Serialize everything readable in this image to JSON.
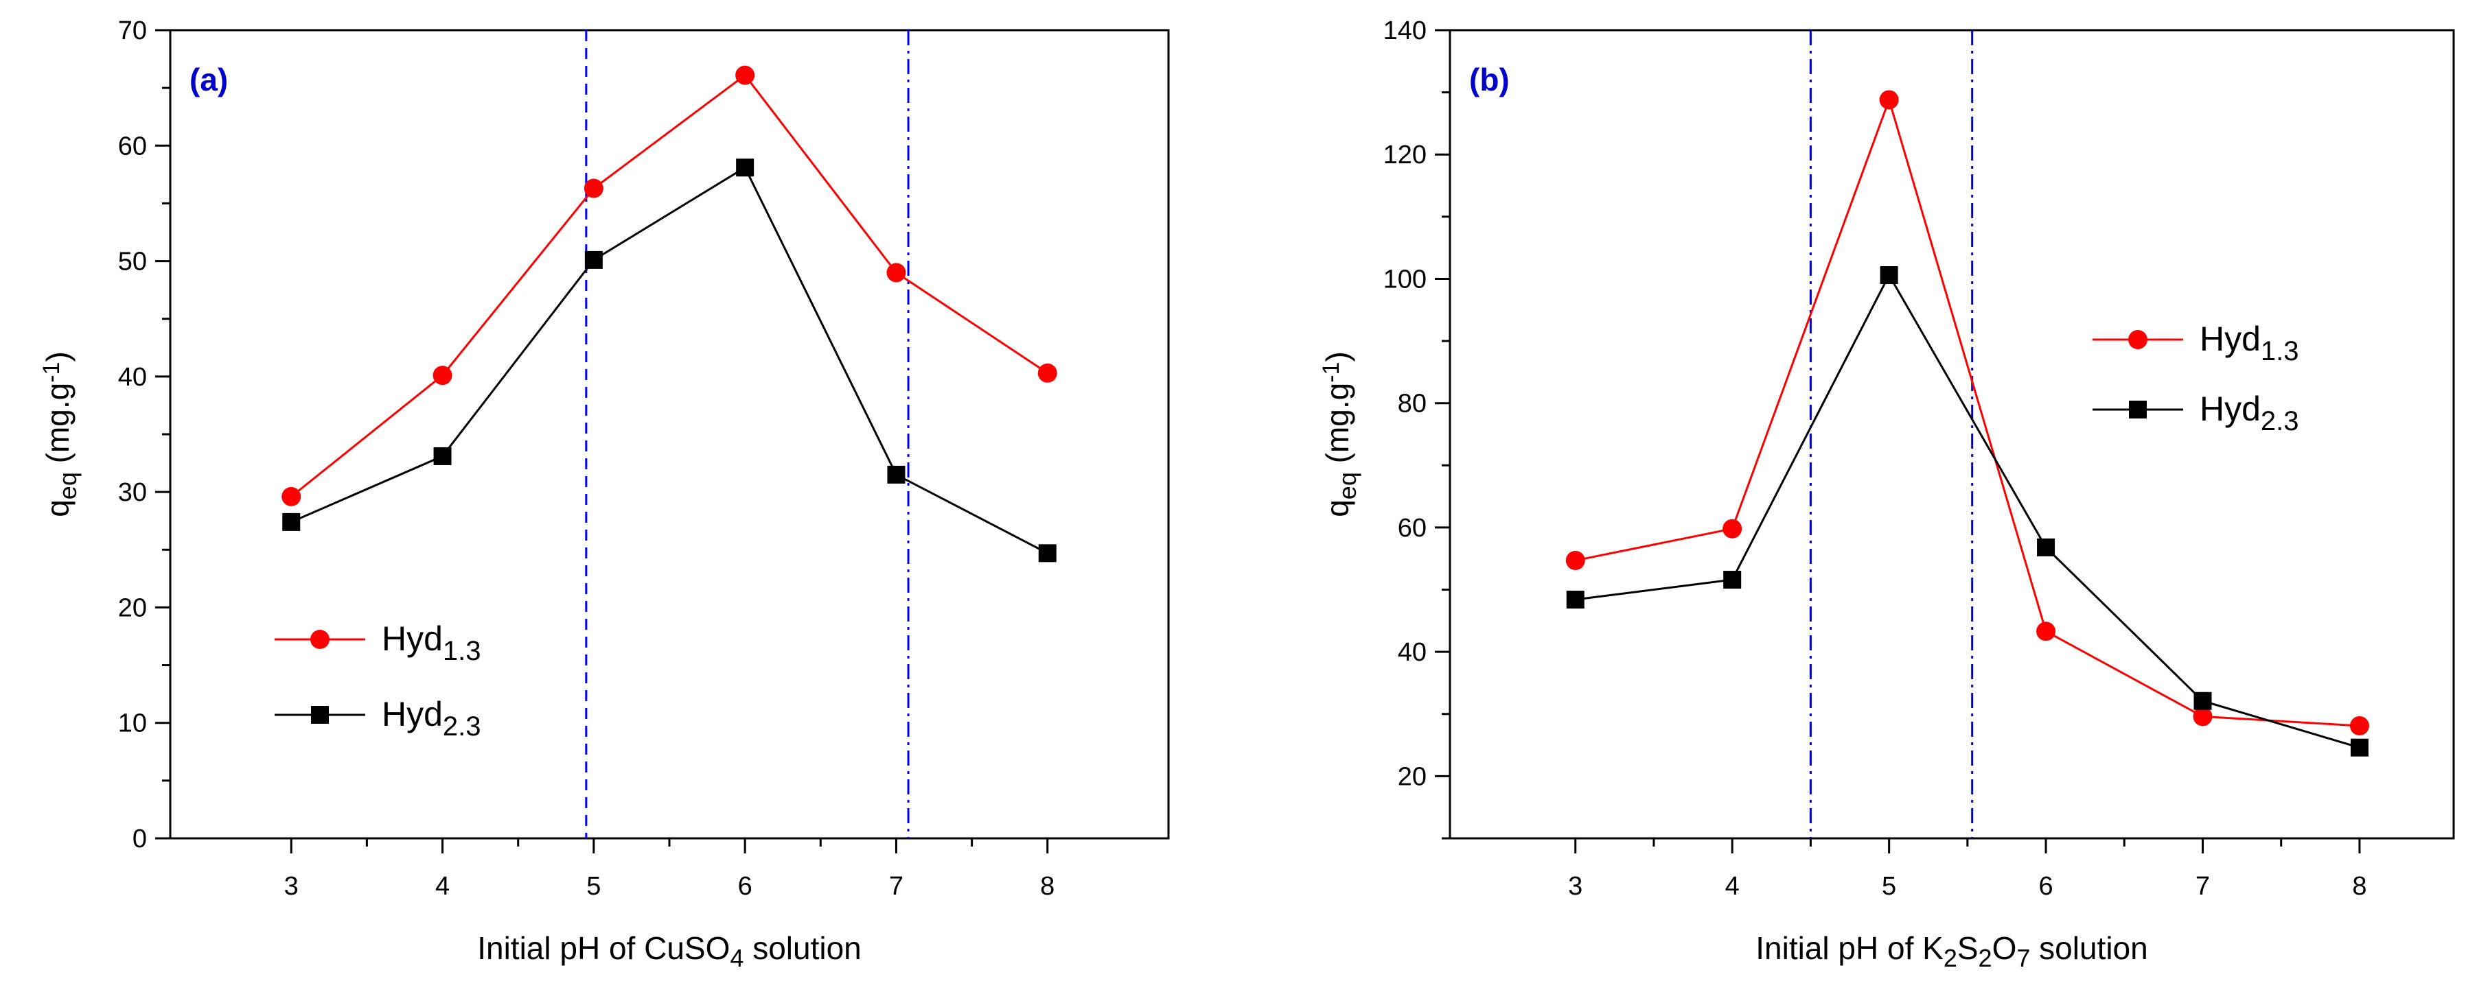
{
  "chart_data": [
    {
      "type": "line",
      "panel_label": "(a)",
      "x": [
        3,
        4,
        5,
        6,
        7,
        8
      ],
      "xlim": [
        2.2,
        8.8
      ],
      "ylim": [
        0,
        70
      ],
      "xticks": [
        "3",
        "4",
        "5",
        "6",
        "7",
        "8"
      ],
      "yticks": [
        "0",
        "10",
        "20",
        "30",
        "40",
        "50",
        "60",
        "70"
      ],
      "xlabel": {
        "main": "Initial pH of CuSO",
        "sub": "4",
        "suffix": " solution"
      },
      "ylabel": {
        "main": "q",
        "sub": "eq",
        "unit": " (mg.g",
        "sup": "-1",
        "close": ")"
      },
      "vlines": [
        {
          "x": 4.95,
          "style": "dash",
          "color": "#0000ff"
        },
        {
          "x": 7.08,
          "style": "dashdot",
          "color": "#0000ff"
        }
      ],
      "legend_position": "bottom-left",
      "series": [
        {
          "name_main": "Hyd",
          "name_sub": "1.3",
          "color": "#ff0000",
          "marker": "circle",
          "values": [
            29.6,
            40.1,
            56.3,
            66.1,
            49.0,
            40.3
          ]
        },
        {
          "name_main": "Hyd",
          "name_sub": "2.3",
          "color": "#000000",
          "marker": "square",
          "values": [
            27.4,
            33.1,
            50.1,
            58.1,
            31.5,
            24.7
          ]
        }
      ]
    },
    {
      "type": "line",
      "panel_label": "(b)",
      "x": [
        3,
        4,
        5,
        6,
        7,
        8
      ],
      "xlim": [
        2.2,
        8.6
      ],
      "ylim": [
        10,
        140
      ],
      "xticks": [
        "3",
        "4",
        "5",
        "6",
        "7",
        "8"
      ],
      "yticks": [
        "20",
        "40",
        "60",
        "80",
        "100",
        "120",
        "140"
      ],
      "xlabel": {
        "main": "Initial pH of K",
        "sub": "2",
        "mid": "S",
        "sub2": "2",
        "mid2": "O",
        "sub3": "7",
        "suffix": " solution"
      },
      "ylabel": {
        "main": "q",
        "sub": "eq",
        "unit": " (mg.g",
        "sup": "-1",
        "close": ")"
      },
      "vlines": [
        {
          "x": 4.5,
          "style": "dashdot",
          "color": "#0000cc"
        },
        {
          "x": 5.53,
          "style": "dashdot",
          "color": "#0000cc"
        }
      ],
      "legend_position": "top-right",
      "series": [
        {
          "name_main": "Hyd",
          "name_sub": "1.3",
          "color": "#ff0000",
          "marker": "circle",
          "values": [
            54.7,
            59.8,
            128.8,
            43.3,
            29.6,
            28.1
          ]
        },
        {
          "name_main": "Hyd",
          "name_sub": "2.3",
          "color": "#000000",
          "marker": "square",
          "values": [
            48.4,
            51.6,
            100.6,
            56.8,
            32.1,
            24.6
          ]
        }
      ]
    }
  ]
}
